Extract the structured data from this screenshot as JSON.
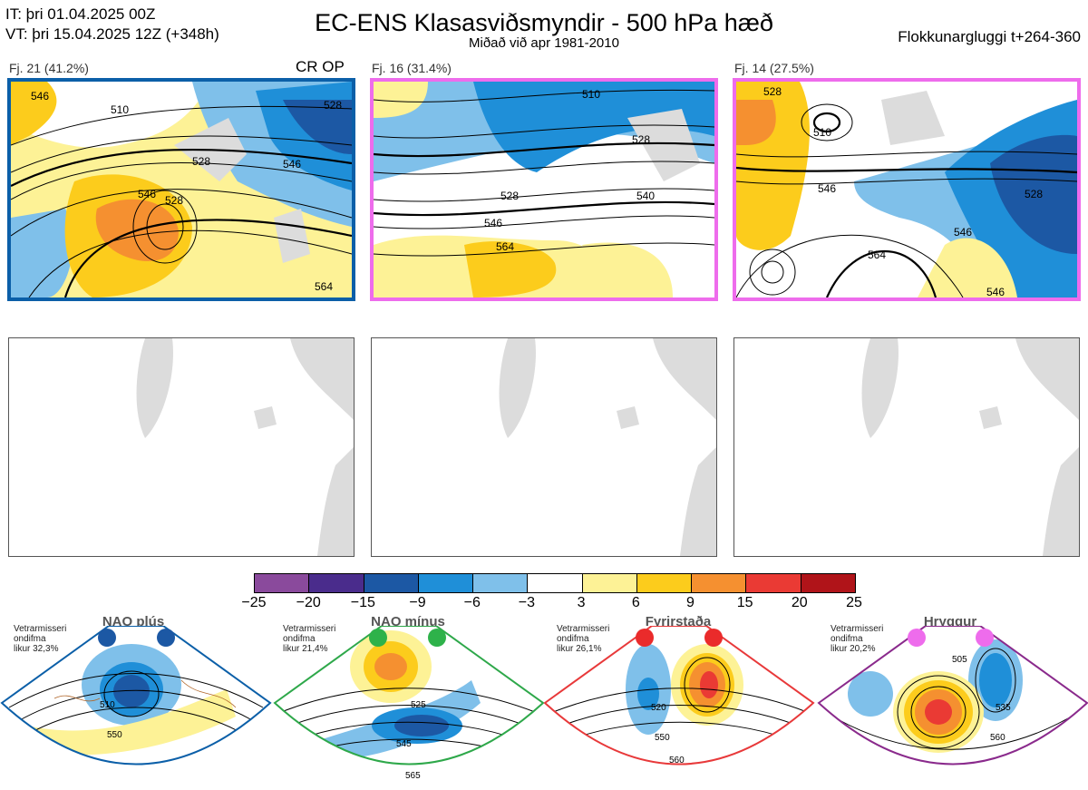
{
  "header": {
    "it_line": "IT: þri 01.04.2025 00Z",
    "vt_line": "VT: þri 15.04.2025 12Z  (+348h)",
    "title": "EC-ENS Klasasviðsmyndir - 500 hPa hæð",
    "subtitle": "Miðað við apr 1981-2010",
    "window": "Flokkunargluggi t+264-360"
  },
  "panels": [
    {
      "label": "Fj. 21 (41.2%)",
      "tag": "CR OP",
      "border_color": "#0b5fa8",
      "contour_labels": [
        "546",
        "510",
        "528",
        "546",
        "546",
        "528",
        "528",
        "564"
      ]
    },
    {
      "label": "Fj. 16 (31.4%)",
      "tag": "",
      "border_color": "#ee6cec",
      "contour_labels": [
        "510",
        "528",
        "528",
        "546",
        "540",
        "564"
      ]
    },
    {
      "label": "Fj. 14 (27.5%)",
      "tag": "",
      "border_color": "#ee6cec",
      "contour_labels": [
        "528",
        "510",
        "546",
        "528",
        "546",
        "564",
        "546"
      ]
    }
  ],
  "colorbar": {
    "ticks": [
      "−25",
      "−20",
      "−15",
      "−9",
      "−6",
      "−3",
      "3",
      "6",
      "9",
      "15",
      "20",
      "25"
    ],
    "colors": [
      "#8a4a9c",
      "#4a2c8c",
      "#1c58a4",
      "#1f8fd8",
      "#7fc0ea",
      "#ffffff",
      "#fdf296",
      "#fccc1c",
      "#f59030",
      "#ea3a34",
      "#b01419"
    ]
  },
  "regimes": [
    {
      "title": "NAO plús",
      "note": [
        "Vetrarmisseri",
        "ondifma",
        "likur 32,3%"
      ],
      "frame_color": "#0b5fa8",
      "dot_color": "#1c58a4",
      "contour_labels": [
        "510",
        "550"
      ]
    },
    {
      "title": "NAO mínus",
      "note": [
        "Vetrarmisseri",
        "ondifma",
        "likur 21,4%"
      ],
      "frame_color": "#2ea84a",
      "dot_color": "#2eb24a",
      "contour_labels": [
        "525",
        "545",
        "565"
      ]
    },
    {
      "title": "Fyrirstaða",
      "note": [
        "Vetrarmisseri",
        "ondifma",
        "likur 26,1%"
      ],
      "frame_color": "#e8393a",
      "dot_color": "#ea2b2b",
      "contour_labels": [
        "520",
        "550",
        "560"
      ]
    },
    {
      "title": "Hryggur",
      "note": [
        "Vetrarmisseri",
        "ondifma",
        "likur 20,2%"
      ],
      "frame_color": "#8a2a8c",
      "dot_color": "#ee6cec",
      "contour_labels": [
        "505",
        "535",
        "560"
      ]
    }
  ]
}
